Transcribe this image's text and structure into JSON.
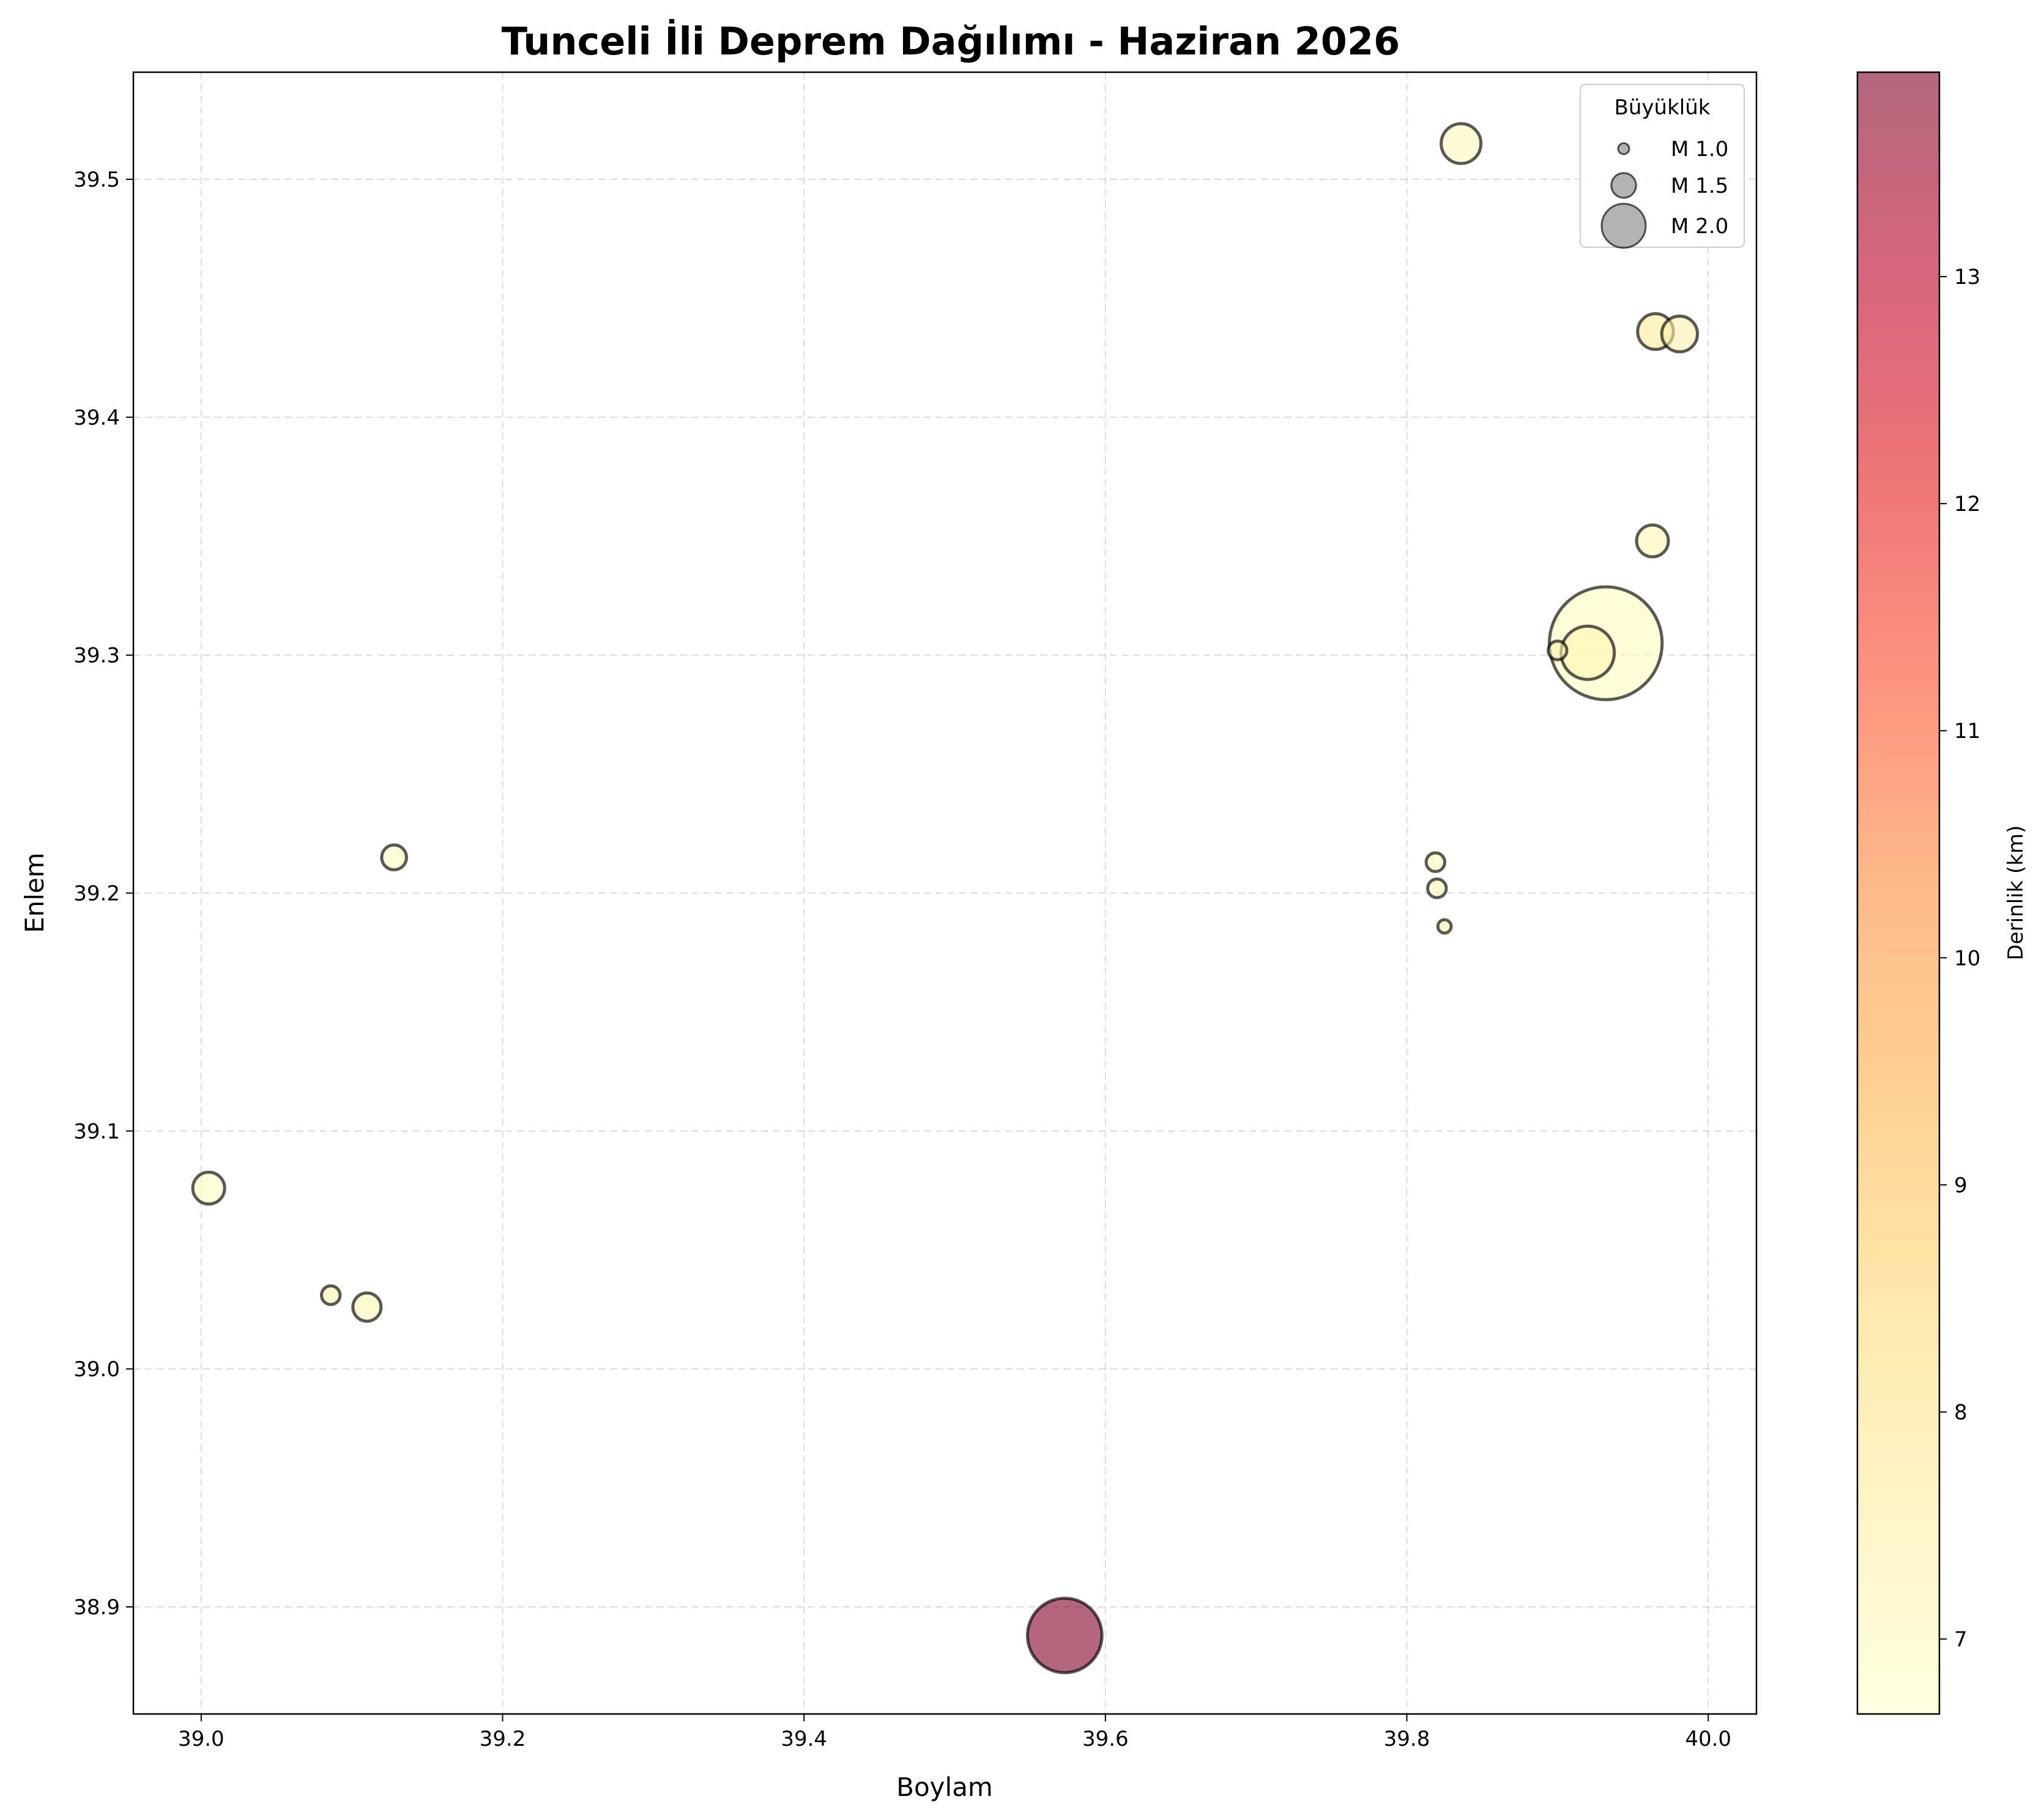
{
  "chart_data": {
    "type": "scatter",
    "title": "Tunceli İli Deprem Dağılımı - Haziran 2026",
    "xlabel": "Boylam",
    "ylabel": "Enlem",
    "xlim": [
      38.955,
      40.032
    ],
    "ylim": [
      38.855,
      39.545
    ],
    "xticks": [
      39.0,
      39.2,
      39.4,
      39.6,
      39.8,
      40.0
    ],
    "xtick_labels": [
      "39.0",
      "39.2",
      "39.4",
      "39.6",
      "39.8",
      "40.0"
    ],
    "yticks": [
      38.9,
      39.0,
      39.1,
      39.2,
      39.3,
      39.4,
      39.5
    ],
    "ytick_labels": [
      "38.9",
      "39.0",
      "39.1",
      "39.2",
      "39.3",
      "39.4",
      "39.5"
    ],
    "grid": true,
    "size_encoding": "magnitude",
    "color_encoding": "depth_km",
    "points": [
      {
        "x": 39.836,
        "y": 39.515,
        "magnitude": 1.9,
        "depth_km": 7.0
      },
      {
        "x": 39.965,
        "y": 39.436,
        "magnitude": 1.8,
        "depth_km": 7.7
      },
      {
        "x": 39.981,
        "y": 39.435,
        "magnitude": 1.8,
        "depth_km": 7.4
      },
      {
        "x": 39.963,
        "y": 39.348,
        "magnitude": 1.7,
        "depth_km": 7.1
      },
      {
        "x": 39.932,
        "y": 39.305,
        "magnitude": 3.2,
        "depth_km": 6.9
      },
      {
        "x": 39.92,
        "y": 39.301,
        "magnitude": 2.2,
        "depth_km": 7.2
      },
      {
        "x": 39.9,
        "y": 39.302,
        "magnitude": 1.3,
        "depth_km": 7.3
      },
      {
        "x": 39.819,
        "y": 39.213,
        "magnitude": 1.3,
        "depth_km": 7.0
      },
      {
        "x": 39.82,
        "y": 39.202,
        "magnitude": 1.3,
        "depth_km": 7.1
      },
      {
        "x": 39.825,
        "y": 39.186,
        "magnitude": 1.1,
        "depth_km": 7.2
      },
      {
        "x": 39.128,
        "y": 39.215,
        "magnitude": 1.5,
        "depth_km": 6.9
      },
      {
        "x": 39.005,
        "y": 39.076,
        "magnitude": 1.7,
        "depth_km": 6.9
      },
      {
        "x": 39.086,
        "y": 39.031,
        "magnitude": 1.3,
        "depth_km": 7.3
      },
      {
        "x": 39.11,
        "y": 39.026,
        "magnitude": 1.6,
        "depth_km": 7.1
      },
      {
        "x": 39.573,
        "y": 38.888,
        "magnitude": 2.6,
        "depth_km": 13.9
      }
    ],
    "legend": {
      "title": "Büyüklük",
      "placement": "top-right",
      "entries": [
        {
          "label": "M 1.0",
          "magnitude": 1.0
        },
        {
          "label": "M 1.5",
          "magnitude": 1.5
        },
        {
          "label": "M 2.0",
          "magnitude": 2.0
        }
      ]
    },
    "colorbar": {
      "label": "Derinlik (km)",
      "range": [
        6.67,
        13.9
      ],
      "ticks": [
        7,
        8,
        9,
        10,
        11,
        12,
        13
      ],
      "tick_labels": [
        "7",
        "8",
        "9",
        "10",
        "11",
        "12",
        "13"
      ],
      "colormap": "YlOrRd",
      "colormap_stops": [
        "#ffffcc",
        "#ffeda0",
        "#fed976",
        "#feb24c",
        "#fd8d3c",
        "#fc4e2a",
        "#e31a1c",
        "#bd0026",
        "#800026"
      ]
    }
  }
}
